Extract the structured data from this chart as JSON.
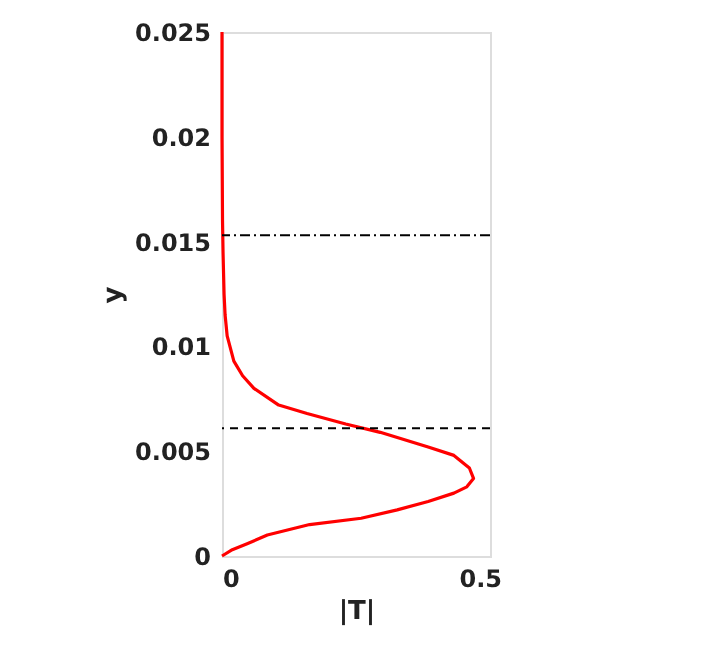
{
  "chart_data": {
    "type": "line",
    "xlabel": "|T|",
    "ylabel": "y",
    "xlim": [
      0,
      0.52
    ],
    "xticks": [
      0,
      0.5
    ],
    "ylim": [
      0,
      0.025
    ],
    "yticks": [
      0,
      0.005,
      0.01,
      0.015,
      0.02,
      0.025
    ],
    "grid": false,
    "marker": "none",
    "line_style": "solid",
    "series": [
      {
        "color": "#ff0000",
        "x": [
          0,
          0.02,
          0.05,
          0.088,
          0.17,
          0.27,
          0.34,
          0.4,
          0.45,
          0.475,
          0.488,
          0.48,
          0.45,
          0.4,
          0.307,
          0.24,
          0.165,
          0.11,
          0.062,
          0.04,
          0.023,
          0.01,
          0.006,
          0.004,
          0.003,
          0.002,
          0.001,
          0,
          0
        ],
        "values": [
          0,
          0.0003,
          0.0006,
          0.001,
          0.0015,
          0.0018,
          0.0022,
          0.0026,
          0.003,
          0.0033,
          0.0037,
          0.0042,
          0.0048,
          0.0052,
          0.0059,
          0.0063,
          0.0068,
          0.0072,
          0.008,
          0.0086,
          0.0093,
          0.0105,
          0.0115,
          0.0125,
          0.0135,
          0.0145,
          0.016,
          0.02,
          0.025
        ]
      }
    ],
    "ref_lines": [
      {
        "axis": "y",
        "value": 0.0153,
        "line_style": "dashdot",
        "color": "#000000"
      },
      {
        "axis": "y",
        "value": 0.0061,
        "line_style": "dashed",
        "color": "#000000"
      }
    ]
  }
}
